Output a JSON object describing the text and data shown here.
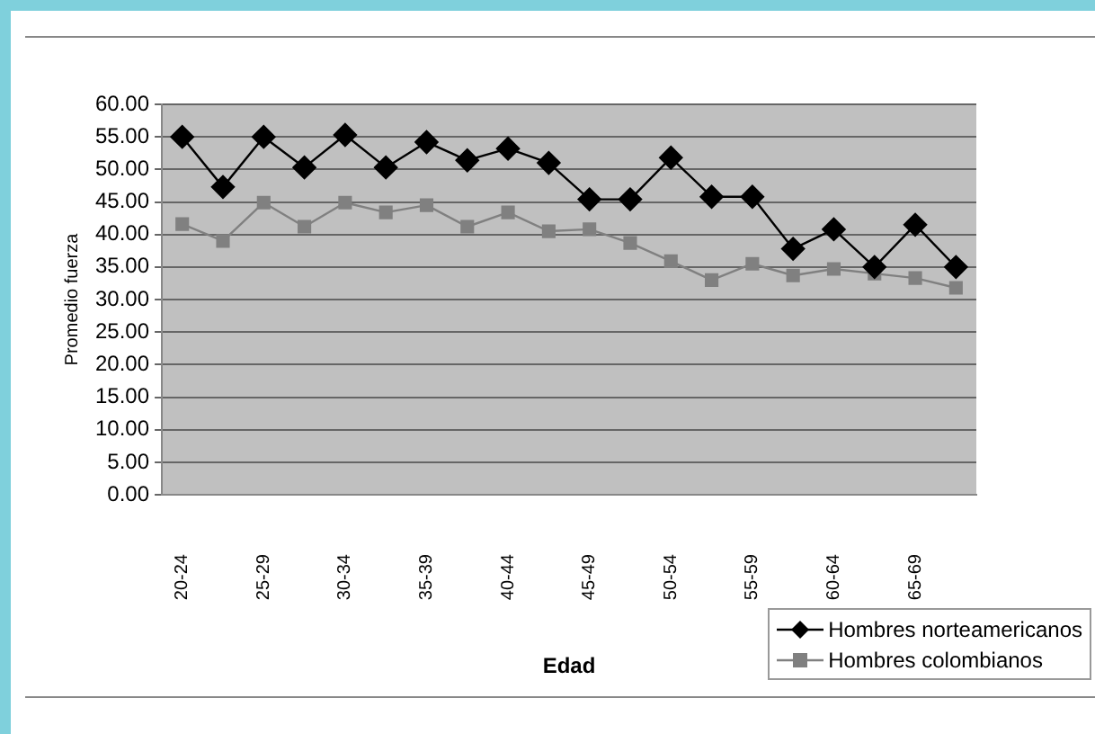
{
  "chart_data": {
    "type": "line",
    "xlabel": "Edad",
    "ylabel": "Promedio fuerza",
    "categories": [
      "20-24",
      null,
      "25-29",
      null,
      "30-34",
      null,
      "35-39",
      null,
      "40-44",
      null,
      "45-49",
      null,
      "50-54",
      null,
      "55-59",
      null,
      "60-64",
      null,
      "65-69",
      null
    ],
    "series": [
      {
        "name": "Hombres norteamericanos",
        "color": "#000000",
        "marker": "diamond",
        "values": [
          55,
          47.3,
          55,
          50.3,
          55.3,
          50.3,
          54.2,
          51.4,
          53.2,
          51,
          45.4,
          45.4,
          51.8,
          45.8,
          45.8,
          37.8,
          40.8,
          35,
          41.5,
          35
        ]
      },
      {
        "name": "Hombres colombianos",
        "color": "#808080",
        "marker": "square",
        "values": [
          41.6,
          39,
          44.9,
          41.2,
          44.9,
          43.4,
          44.5,
          41.2,
          43.4,
          40.5,
          40.8,
          38.7,
          35.9,
          33,
          35.5,
          33.7,
          34.7,
          34,
          33.3,
          31.8
        ]
      }
    ],
    "ylim": [
      0,
      60
    ],
    "yticks": [
      {
        "value": 0,
        "label": "0.00"
      },
      {
        "value": 5,
        "label": "5.00"
      },
      {
        "value": 10,
        "label": "10.00"
      },
      {
        "value": 15,
        "label": "15.00"
      },
      {
        "value": 20,
        "label": "20.00"
      },
      {
        "value": 25,
        "label": "25.00"
      },
      {
        "value": 30,
        "label": "30.00"
      },
      {
        "value": 35,
        "label": "35.00"
      },
      {
        "value": 40,
        "label": "40.00"
      },
      {
        "value": 45,
        "label": "45.00"
      },
      {
        "value": 50,
        "label": "50.00"
      },
      {
        "value": 55,
        "label": "55.00"
      },
      {
        "value": 60,
        "label": "60.00"
      }
    ],
    "grid": "y",
    "legend": "bottom right"
  }
}
